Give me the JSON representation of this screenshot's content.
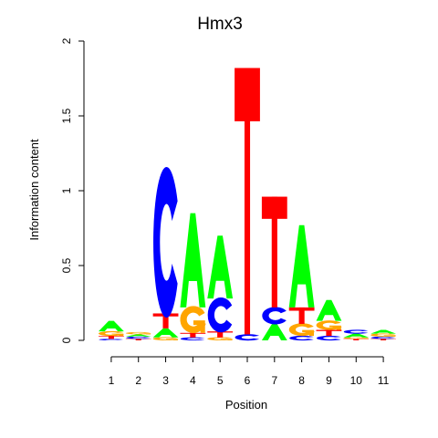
{
  "chart_data": {
    "type": "sequence-logo",
    "title": "Hmx3",
    "xlabel": "Position",
    "ylabel": "Information content",
    "ylim": [
      0,
      2
    ],
    "yticks": [
      0,
      0.5,
      1,
      1.5,
      2
    ],
    "ytick_labels": [
      "0",
      "0.5",
      "1",
      "1.5",
      "2"
    ],
    "positions": [
      "1",
      "2",
      "3",
      "4",
      "5",
      "6",
      "7",
      "8",
      "9",
      "10",
      "11"
    ],
    "colors": {
      "A": "#00ff00",
      "C": "#0000ff",
      "G": "#ffa500",
      "T": "#ff0000"
    },
    "columns": [
      [
        {
          "base": "C",
          "bits": 0.01
        },
        {
          "base": "T",
          "bits": 0.02
        },
        {
          "base": "G",
          "bits": 0.03
        },
        {
          "base": "A",
          "bits": 0.07
        }
      ],
      [
        {
          "base": "T",
          "bits": 0.01
        },
        {
          "base": "C",
          "bits": 0.015
        },
        {
          "base": "A",
          "bits": 0.015
        },
        {
          "base": "G",
          "bits": 0.015
        }
      ],
      [
        {
          "base": "G",
          "bits": 0.02
        },
        {
          "base": "A",
          "bits": 0.06
        },
        {
          "base": "T",
          "bits": 0.1
        },
        {
          "base": "C",
          "bits": 0.95
        }
      ],
      [
        {
          "base": "C",
          "bits": 0.02
        },
        {
          "base": "T",
          "bits": 0.03
        },
        {
          "base": "G",
          "bits": 0.17
        },
        {
          "base": "A",
          "bits": 0.63
        }
      ],
      [
        {
          "base": "G",
          "bits": 0.02
        },
        {
          "base": "T",
          "bits": 0.04
        },
        {
          "base": "C",
          "bits": 0.22
        },
        {
          "base": "A",
          "bits": 0.42
        }
      ],
      [
        {
          "base": "C",
          "bits": 0.04
        },
        {
          "base": "T",
          "bits": 1.78
        }
      ],
      [
        {
          "base": "A",
          "bits": 0.11
        },
        {
          "base": "C",
          "bits": 0.11
        },
        {
          "base": "T",
          "bits": 0.74
        }
      ],
      [
        {
          "base": "C",
          "bits": 0.03
        },
        {
          "base": "G",
          "bits": 0.08
        },
        {
          "base": "T",
          "bits": 0.11
        },
        {
          "base": "A",
          "bits": 0.55
        }
      ],
      [
        {
          "base": "C",
          "bits": 0.03
        },
        {
          "base": "T",
          "bits": 0.04
        },
        {
          "base": "G",
          "bits": 0.06
        },
        {
          "base": "A",
          "bits": 0.14
        }
      ],
      [
        {
          "base": "T",
          "bits": 0.01
        },
        {
          "base": "G",
          "bits": 0.01
        },
        {
          "base": "A",
          "bits": 0.025
        },
        {
          "base": "C",
          "bits": 0.025
        }
      ],
      [
        {
          "base": "T",
          "bits": 0.01
        },
        {
          "base": "C",
          "bits": 0.015
        },
        {
          "base": "G",
          "bits": 0.02
        },
        {
          "base": "A",
          "bits": 0.025
        }
      ]
    ]
  }
}
